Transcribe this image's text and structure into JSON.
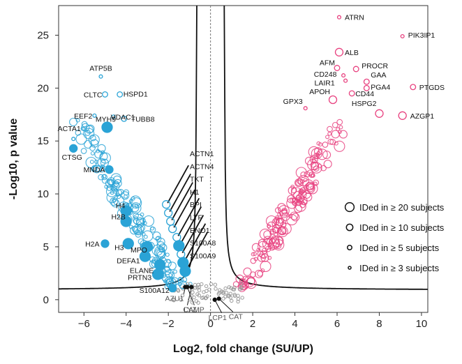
{
  "chart_data": {
    "type": "scatter",
    "title": "",
    "xlabel": "Log2, fold change (SU/UP)",
    "ylabel": "-Log10, p value",
    "xlim": [
      -7.2,
      10.3
    ],
    "ylim": [
      -1.2,
      27.8
    ],
    "xticks": [
      -6,
      -4,
      -2,
      0,
      2,
      4,
      6,
      8,
      10
    ],
    "yticks": [
      0,
      5,
      10,
      15,
      20,
      25
    ],
    "colors": {
      "down": "#2aa3d6",
      "up": "#e8417f",
      "ns": "#9a9a9a",
      "curve": "#111111"
    },
    "legend": {
      "position": "right",
      "entries": [
        {
          "label": "IDed in ≥ 20 subjects",
          "size": "xl"
        },
        {
          "label": "IDed in ≥ 10 subjects",
          "size": "lg"
        },
        {
          "label": "IDed in ≥ 5 subjects",
          "size": "md"
        },
        {
          "label": "IDed in ≥ 3 subjects",
          "size": "sm"
        }
      ]
    },
    "labeled_points": [
      {
        "label": "ATRN",
        "x": 6.1,
        "y": 26.7,
        "group": "up",
        "size": "sm"
      },
      {
        "label": "PIK3IP1",
        "x": 9.1,
        "y": 24.9,
        "group": "up",
        "size": "sm"
      },
      {
        "label": "ALB",
        "x": 6.1,
        "y": 23.4,
        "group": "up",
        "size": "lg"
      },
      {
        "label": "AFM",
        "x": 6.0,
        "y": 21.9,
        "group": "up",
        "size": "md"
      },
      {
        "label": "CD248",
        "x": 6.3,
        "y": 21.2,
        "group": "up",
        "size": "sm"
      },
      {
        "label": "PROCR",
        "x": 6.9,
        "y": 21.8,
        "group": "up",
        "size": "md"
      },
      {
        "label": "LAIR1",
        "x": 6.4,
        "y": 20.7,
        "group": "up",
        "size": "sm"
      },
      {
        "label": "GAA",
        "x": 7.4,
        "y": 20.6,
        "group": "up",
        "size": "md"
      },
      {
        "label": "PGA4",
        "x": 7.4,
        "y": 20.0,
        "group": "up",
        "size": "md"
      },
      {
        "label": "PTGDS",
        "x": 9.6,
        "y": 20.1,
        "group": "up",
        "size": "md"
      },
      {
        "label": "CD44",
        "x": 6.7,
        "y": 19.5,
        "group": "up",
        "size": "md"
      },
      {
        "label": "APOH",
        "x": 5.8,
        "y": 18.9,
        "group": "up",
        "size": "lg"
      },
      {
        "label": "GPX3",
        "x": 4.5,
        "y": 18.1,
        "group": "up",
        "size": "sm"
      },
      {
        "label": "HSPG2",
        "x": 8.0,
        "y": 17.6,
        "group": "up",
        "size": "lg"
      },
      {
        "label": "AZGP1",
        "x": 9.1,
        "y": 17.4,
        "group": "up",
        "size": "lg"
      },
      {
        "label": "ATP5B",
        "x": -5.2,
        "y": 21.1,
        "group": "down",
        "size": "sm"
      },
      {
        "label": "CLTC",
        "x": -5.0,
        "y": 19.4,
        "group": "down",
        "size": "md"
      },
      {
        "label": "HSPD1",
        "x": -4.3,
        "y": 19.4,
        "group": "down",
        "size": "md"
      },
      {
        "label": "EEF2",
        "x": -5.5,
        "y": 17.4,
        "group": "down",
        "size": "sm"
      },
      {
        "label": "VDAC1",
        "x": -4.6,
        "y": 17.3,
        "group": "down",
        "size": "sm"
      },
      {
        "label": "TUBB8",
        "x": -4.1,
        "y": 17.1,
        "group": "down",
        "size": "md"
      },
      {
        "label": "MYH9",
        "x": -4.9,
        "y": 16.3,
        "group": "down",
        "size": "xl",
        "filled": true
      },
      {
        "label": "ACTA1",
        "x": -6.5,
        "y": 15.2,
        "group": "down",
        "size": "sm"
      },
      {
        "label": "CTSG",
        "x": -6.5,
        "y": 14.3,
        "group": "down",
        "size": "lg",
        "filled": true
      },
      {
        "label": "MNDA",
        "x": -4.8,
        "y": 12.3,
        "group": "down",
        "size": "lg",
        "filled": true
      },
      {
        "label": "H4",
        "x": -4.0,
        "y": 8.4,
        "group": "down",
        "size": "xl",
        "filled": true
      },
      {
        "label": "H2B",
        "x": -4.0,
        "y": 7.4,
        "group": "down",
        "size": "xl",
        "filled": true
      },
      {
        "label": "H2A",
        "x": -5.0,
        "y": 5.3,
        "group": "down",
        "size": "lg",
        "filled": true
      },
      {
        "label": "H3",
        "x": -3.9,
        "y": 5.3,
        "group": "down",
        "size": "xl",
        "filled": true
      },
      {
        "label": "MPO",
        "x": -3.0,
        "y": 5.0,
        "group": "down",
        "size": "xl",
        "filled": true
      },
      {
        "label": "DEFA1",
        "x": -3.1,
        "y": 4.1,
        "group": "down",
        "size": "xl",
        "filled": true
      },
      {
        "label": "ELANE",
        "x": -2.4,
        "y": 3.3,
        "group": "down",
        "size": "xl",
        "filled": true
      },
      {
        "label": "PRTN3",
        "x": -2.5,
        "y": 2.4,
        "group": "down",
        "size": "xl",
        "filled": true
      },
      {
        "label": "S100A12",
        "x": -1.8,
        "y": 1.1,
        "group": "down",
        "size": "lg",
        "filled": true
      },
      {
        "label": "ACTN1",
        "x": -2.1,
        "y": 9.0,
        "group": "down",
        "size": "lg"
      },
      {
        "label": "ACTN4",
        "x": -2.0,
        "y": 8.2,
        "group": "down",
        "size": "lg"
      },
      {
        "label": "TKT",
        "x": -1.9,
        "y": 7.4,
        "group": "down",
        "size": "lg"
      },
      {
        "label": "H1",
        "x": -1.8,
        "y": 6.7,
        "group": "down",
        "size": "lg"
      },
      {
        "label": "BPI",
        "x": -1.6,
        "y": 5.9,
        "group": "down",
        "size": "lg"
      },
      {
        "label": "LTF",
        "x": -1.5,
        "y": 5.1,
        "group": "down",
        "size": "xl",
        "filled": true
      },
      {
        "label": "ENO1",
        "x": -1.4,
        "y": 4.3,
        "group": "down",
        "size": "lg"
      },
      {
        "label": "S100A8",
        "x": -1.3,
        "y": 3.5,
        "group": "down",
        "size": "xl",
        "filled": true
      },
      {
        "label": "S100A9",
        "x": -1.2,
        "y": 2.7,
        "group": "down",
        "size": "xl",
        "filled": true
      },
      {
        "label": "AZU1",
        "x": -1.2,
        "y": 1.2,
        "group": "ns",
        "size": "sm"
      },
      {
        "label": "LYZ",
        "x": -1.1,
        "y": 1.2,
        "group": "ns",
        "size": "sm"
      },
      {
        "label": "CAMP",
        "x": -0.9,
        "y": 1.2,
        "group": "ns",
        "size": "sm"
      },
      {
        "label": "LCP1",
        "x": 0.2,
        "y": 0.0,
        "group": "ns",
        "size": "sm"
      },
      {
        "label": "CAT",
        "x": 0.4,
        "y": 0.1,
        "group": "ns",
        "size": "sm"
      }
    ]
  }
}
